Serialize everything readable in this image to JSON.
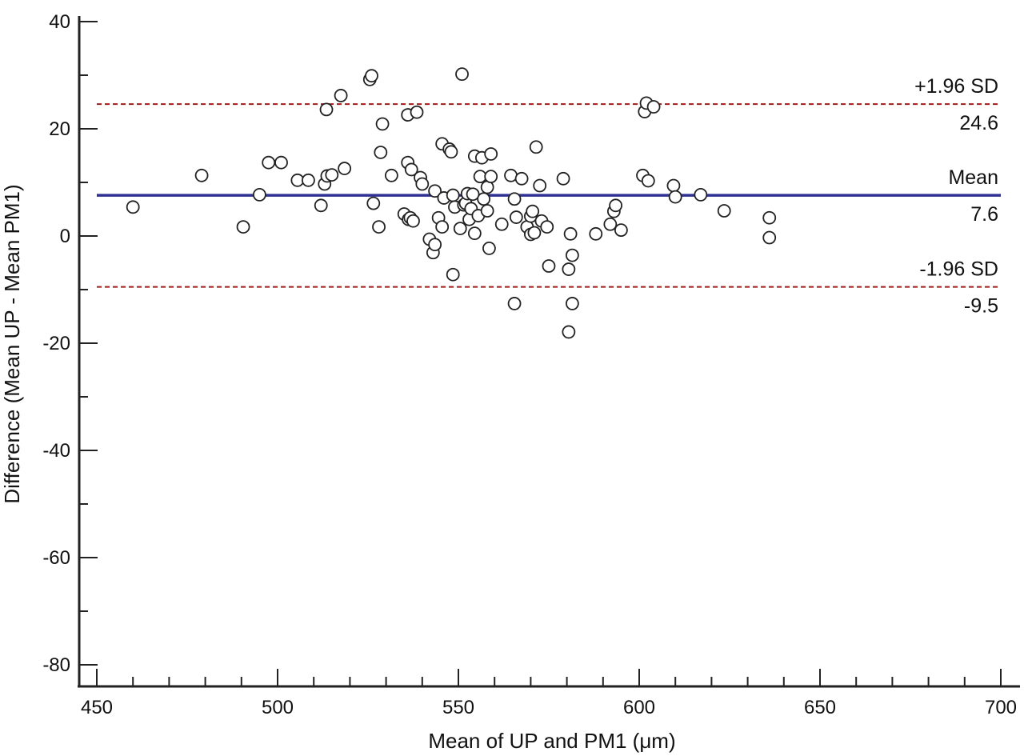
{
  "chart_data": {
    "type": "scatter",
    "title": "",
    "xlabel": "Mean of UP and PM1 (μm)",
    "ylabel": "Difference (Mean UP - Mean PM1)",
    "xlim": [
      450,
      700
    ],
    "ylim": [
      -80,
      40
    ],
    "x_ticks": [
      "450",
      "500",
      "550",
      "600",
      "650",
      "700"
    ],
    "y_ticks": [
      "40",
      "20",
      "0",
      "-20",
      "-40",
      "-60",
      "-80"
    ],
    "grid": false,
    "reference_lines": [
      {
        "name": "+1.96 SD",
        "label": "+1.96 SD",
        "value_label": "24.6",
        "y": 24.6,
        "style": "dashed",
        "color": "#a01c1c"
      },
      {
        "name": "Mean",
        "label": "Mean",
        "value_label": "7.6",
        "y": 7.6,
        "style": "solid",
        "color": "#2e3192"
      },
      {
        "name": "-1.96 SD",
        "label": "-1.96 SD",
        "value_label": "-9.5",
        "y": -9.5,
        "style": "dashed",
        "color": "#a01c1c"
      }
    ],
    "points": [
      [
        460,
        5.4
      ],
      [
        479,
        11.3
      ],
      [
        490.5,
        1.7
      ],
      [
        495,
        7.7
      ],
      [
        497.5,
        13.7
      ],
      [
        501,
        13.7
      ],
      [
        505.5,
        10.4
      ],
      [
        508.5,
        10.4
      ],
      [
        512,
        5.7
      ],
      [
        513,
        9.7
      ],
      [
        513.5,
        23.6
      ],
      [
        513.7,
        11.2
      ],
      [
        515,
        11.4
      ],
      [
        517.5,
        26.2
      ],
      [
        518.5,
        12.6
      ],
      [
        525.5,
        29.2
      ],
      [
        526,
        29.9
      ],
      [
        526.5,
        6.1
      ],
      [
        528,
        1.7
      ],
      [
        528.5,
        15.6
      ],
      [
        529,
        20.9
      ],
      [
        531.5,
        11.3
      ],
      [
        535,
        4.1
      ],
      [
        536,
        22.6
      ],
      [
        536,
        13.7
      ],
      [
        536.2,
        3.1
      ],
      [
        536.7,
        3.4
      ],
      [
        537,
        12.4
      ],
      [
        537.5,
        2.8
      ],
      [
        538.5,
        23.1
      ],
      [
        539.5,
        10.9
      ],
      [
        540,
        9.7
      ],
      [
        542,
        -0.6
      ],
      [
        543,
        -3.1
      ],
      [
        543.5,
        -1.6
      ],
      [
        543.5,
        8.4
      ],
      [
        544.5,
        3.4
      ],
      [
        545.5,
        1.7
      ],
      [
        545.5,
        17.2
      ],
      [
        546,
        7.1
      ],
      [
        547.5,
        16.2
      ],
      [
        548,
        15.7
      ],
      [
        548.5,
        7.6
      ],
      [
        548.5,
        -7.2
      ],
      [
        549,
        5.4
      ],
      [
        550.5,
        1.4
      ],
      [
        551,
        30.2
      ],
      [
        551.5,
        5.8
      ],
      [
        552,
        6.1
      ],
      [
        552.5,
        7.9
      ],
      [
        553,
        3.1
      ],
      [
        553.5,
        5.1
      ],
      [
        554,
        7.8
      ],
      [
        554.5,
        0.5
      ],
      [
        554.5,
        14.9
      ],
      [
        555.5,
        3.8
      ],
      [
        556,
        11.1
      ],
      [
        556.5,
        14.6
      ],
      [
        557,
        6.9
      ],
      [
        558,
        4.7
      ],
      [
        558,
        9.1
      ],
      [
        558.5,
        -2.3
      ],
      [
        559,
        15.3
      ],
      [
        559,
        11.1
      ],
      [
        562,
        2.2
      ],
      [
        564.5,
        11.3
      ],
      [
        565.5,
        6.9
      ],
      [
        565.5,
        -12.6
      ],
      [
        566,
        3.5
      ],
      [
        567.5,
        10.7
      ],
      [
        569,
        1.7
      ],
      [
        570,
        3.7
      ],
      [
        570,
        0.3
      ],
      [
        570.5,
        4.6
      ],
      [
        571,
        0.6
      ],
      [
        571.5,
        16.6
      ],
      [
        572.5,
        9.4
      ],
      [
        573,
        2.8
      ],
      [
        574.5,
        1.7
      ],
      [
        575,
        -5.6
      ],
      [
        579,
        10.7
      ],
      [
        580.5,
        -6.2
      ],
      [
        580.5,
        -17.9
      ],
      [
        581,
        0.4
      ],
      [
        581.5,
        -3.6
      ],
      [
        581.5,
        -12.6
      ],
      [
        588,
        0.4
      ],
      [
        592,
        2.2
      ],
      [
        593,
        4.6
      ],
      [
        593.5,
        5.7
      ],
      [
        595,
        1.1
      ],
      [
        601,
        11.3
      ],
      [
        601.5,
        23.2
      ],
      [
        602,
        24.8
      ],
      [
        602.5,
        10.3
      ],
      [
        604,
        24.1
      ],
      [
        609.5,
        9.4
      ],
      [
        610,
        7.3
      ],
      [
        617,
        7.7
      ],
      [
        623.5,
        4.7
      ],
      [
        636,
        3.4
      ],
      [
        636,
        -0.3
      ]
    ]
  }
}
